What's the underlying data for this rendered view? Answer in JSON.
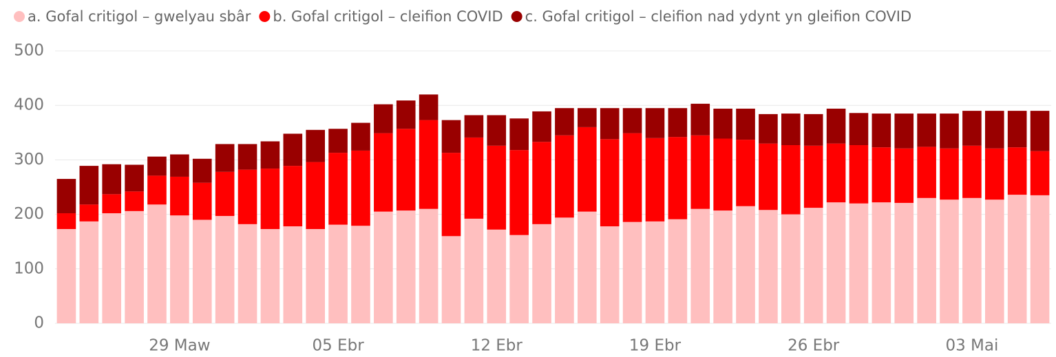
{
  "chart_data": {
    "type": "stacked_bar",
    "categories": [
      null,
      null,
      null,
      null,
      null,
      "29 Maw",
      null,
      null,
      null,
      null,
      null,
      null,
      "05 Ebr",
      null,
      null,
      null,
      null,
      null,
      null,
      "12 Ebr",
      null,
      null,
      null,
      null,
      null,
      null,
      "19 Ebr",
      null,
      null,
      null,
      null,
      null,
      null,
      "26 Ebr",
      null,
      null,
      null,
      null,
      null,
      null,
      "03 Mai",
      null,
      null,
      null
    ],
    "series": [
      {
        "name": "a. Gofal critigol – gwelyau sbâr",
        "color": "#ffbfbf",
        "values": [
          173,
          187,
          202,
          206,
          218,
          198,
          190,
          197,
          182,
          173,
          178,
          173,
          181,
          179,
          205,
          207,
          210,
          160,
          192,
          172,
          162,
          182,
          194,
          205,
          178,
          186,
          187,
          191,
          210,
          207,
          215,
          208,
          200,
          212,
          222,
          220,
          222,
          221,
          230,
          227,
          230,
          227,
          236,
          235
        ]
      },
      {
        "name": "b. Gofal critigol – cleifion COVID",
        "color": "#ff0000",
        "values": [
          29,
          31,
          35,
          36,
          53,
          71,
          68,
          81,
          100,
          111,
          111,
          123,
          132,
          138,
          144,
          150,
          163,
          153,
          149,
          154,
          156,
          151,
          151,
          155,
          160,
          163,
          153,
          151,
          135,
          132,
          122,
          122,
          127,
          114,
          108,
          107,
          101,
          100,
          94,
          94,
          96,
          94,
          87,
          81
        ]
      },
      {
        "name": "c. Gofal critigol – cleifion nad ydynt yn gleifion COVID",
        "color": "#990000",
        "values": [
          63,
          71,
          55,
          49,
          35,
          41,
          44,
          51,
          47,
          50,
          59,
          59,
          44,
          51,
          53,
          52,
          47,
          60,
          41,
          56,
          58,
          56,
          50,
          35,
          57,
          46,
          55,
          53,
          58,
          55,
          57,
          54,
          58,
          58,
          64,
          59,
          62,
          64,
          61,
          64,
          64,
          69,
          67,
          74
        ]
      }
    ],
    "ylim": [
      0,
      500
    ],
    "yticks": [
      0,
      100,
      200,
      300,
      400,
      500
    ],
    "grid": true,
    "legend": "top"
  }
}
